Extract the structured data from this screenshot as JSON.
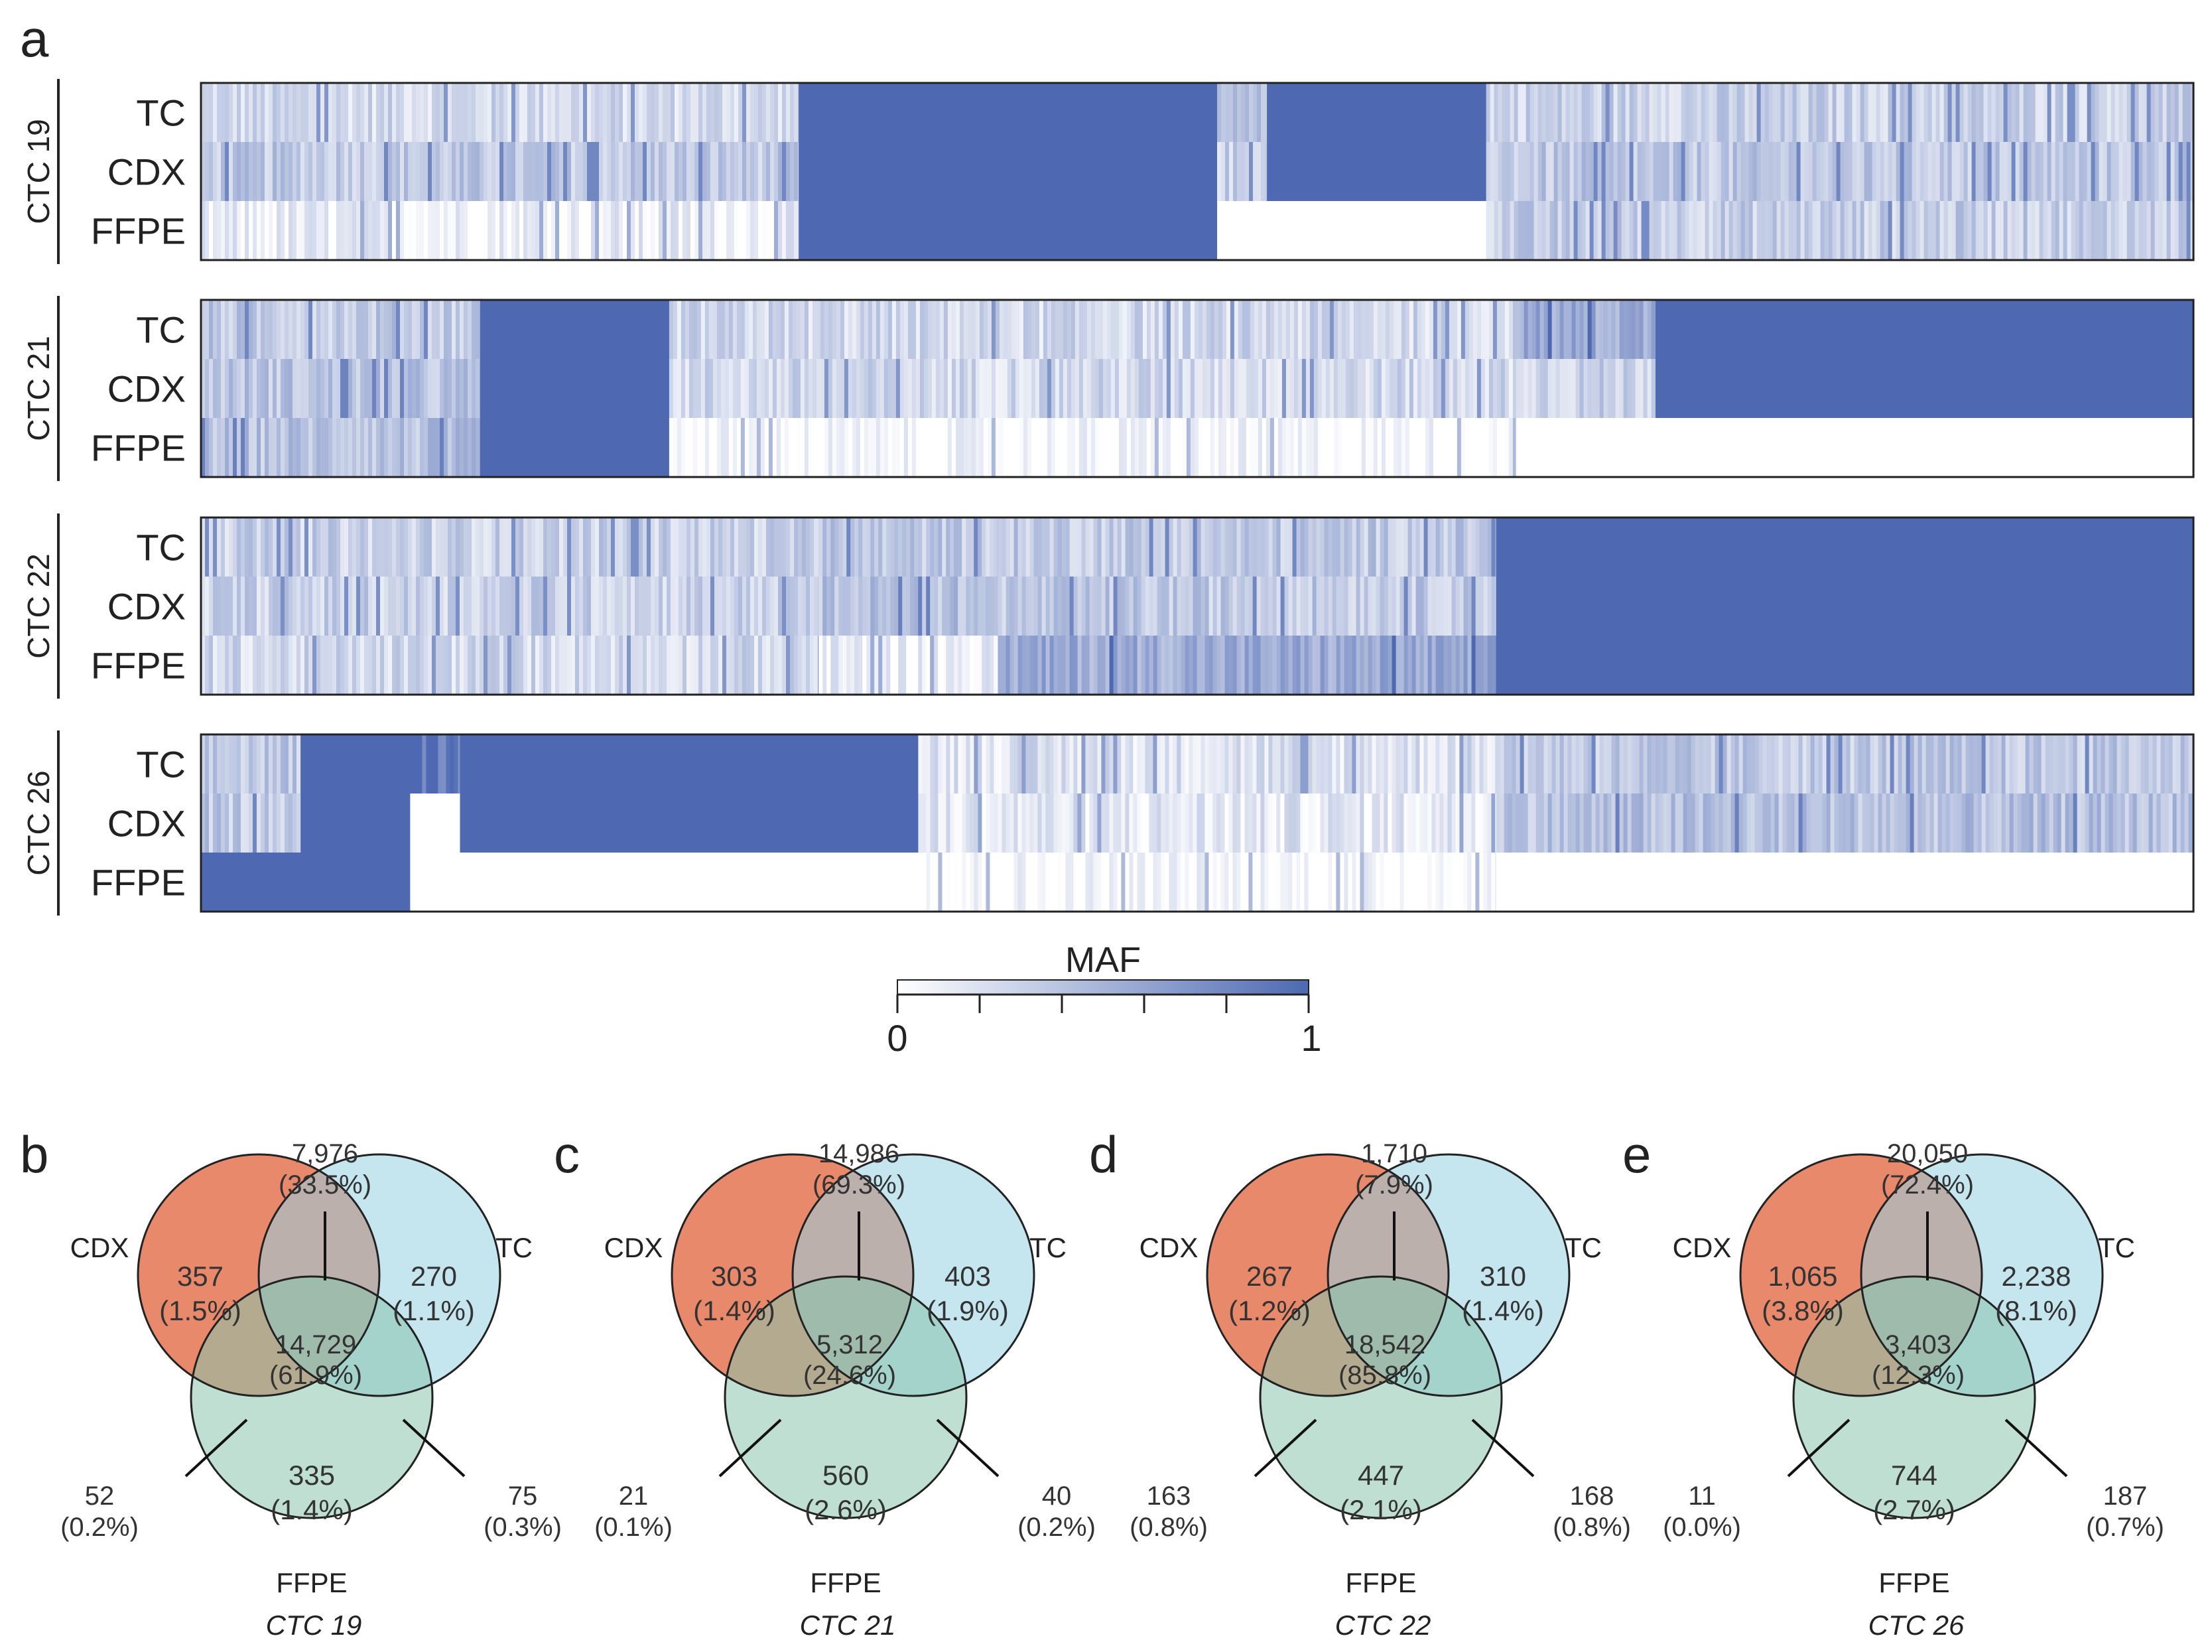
{
  "colors": {
    "max": "#4e69b2",
    "min": "#ffffff",
    "cdx": "#e9896c",
    "tc": "#95d0e2",
    "ffpe": "#89c4ad",
    "tri": "#a89f99"
  },
  "chart_data": [
    {
      "type": "heatmap",
      "panel": "a",
      "colorbar": {
        "title": "MAF",
        "min_label": "0",
        "max_label": "1",
        "range": [
          0,
          1
        ]
      },
      "groups": [
        {
          "name": "CTC 19",
          "rows": [
            "TC",
            "CDX",
            "FFPE"
          ],
          "blocks": [
            {
              "from": 0.0,
              "to": 0.3,
              "tc": 0.25,
              "cdx": 0.35,
              "ffpe": 0.1
            },
            {
              "from": 0.3,
              "to": 0.51,
              "tc": 1.0,
              "cdx": 1.0,
              "ffpe": 1.0
            },
            {
              "from": 0.51,
              "to": 0.535,
              "tc": 0.35,
              "cdx": 0.3,
              "ffpe": 0.0
            },
            {
              "from": 0.535,
              "to": 0.645,
              "tc": 1.0,
              "cdx": 1.0,
              "ffpe": 0.0
            },
            {
              "from": 0.645,
              "to": 1.0,
              "tc": 0.3,
              "cdx": 0.35,
              "ffpe": 0.32
            }
          ]
        },
        {
          "name": "CTC 21",
          "rows": [
            "TC",
            "CDX",
            "FFPE"
          ],
          "blocks": [
            {
              "from": 0.0,
              "to": 0.14,
              "tc": 0.35,
              "cdx": 0.38,
              "ffpe": 0.4
            },
            {
              "from": 0.14,
              "to": 0.235,
              "tc": 1.0,
              "cdx": 1.0,
              "ffpe": 1.0
            },
            {
              "from": 0.235,
              "to": 0.66,
              "tc": 0.25,
              "cdx": 0.25,
              "ffpe": 0.02
            },
            {
              "from": 0.66,
              "to": 0.73,
              "tc": 0.55,
              "cdx": 0.3,
              "ffpe": 0.0
            },
            {
              "from": 0.73,
              "to": 1.0,
              "tc": 1.0,
              "cdx": 1.0,
              "ffpe": 0.0
            }
          ]
        },
        {
          "name": "CTC 22",
          "rows": [
            "TC",
            "CDX",
            "FFPE"
          ],
          "blocks": [
            {
              "from": 0.0,
              "to": 0.31,
              "tc": 0.3,
              "cdx": 0.3,
              "ffpe": 0.25
            },
            {
              "from": 0.31,
              "to": 0.4,
              "tc": 0.35,
              "cdx": 0.4,
              "ffpe": 0.1
            },
            {
              "from": 0.4,
              "to": 0.65,
              "tc": 0.35,
              "cdx": 0.35,
              "ffpe": 0.55
            },
            {
              "from": 0.65,
              "to": 1.0,
              "tc": 1.0,
              "cdx": 1.0,
              "ffpe": 1.0
            }
          ]
        },
        {
          "name": "CTC 26",
          "rows": [
            "TC",
            "CDX",
            "FFPE"
          ],
          "blocks": [
            {
              "from": 0.0,
              "to": 0.05,
              "tc": 0.35,
              "cdx": 0.35,
              "ffpe": 1.0
            },
            {
              "from": 0.05,
              "to": 0.105,
              "tc": 1.0,
              "cdx": 1.0,
              "ffpe": 1.0
            },
            {
              "from": 0.105,
              "to": 0.13,
              "tc": 0.9,
              "cdx": 0.0,
              "ffpe": 0.0
            },
            {
              "from": 0.13,
              "to": 0.36,
              "tc": 1.0,
              "cdx": 1.0,
              "ffpe": 0.0
            },
            {
              "from": 0.36,
              "to": 0.65,
              "tc": 0.2,
              "cdx": 0.15,
              "ffpe": 0.02
            },
            {
              "from": 0.65,
              "to": 1.0,
              "tc": 0.35,
              "cdx": 0.4,
              "ffpe": 0.0
            }
          ]
        }
      ]
    },
    {
      "type": "venn",
      "panels": [
        {
          "letter": "b",
          "caption": "CTC 19",
          "sets": [
            "CDX",
            "TC",
            "FFPE"
          ],
          "regions": {
            "cdx_only": [
              "357",
              "(1.5%)"
            ],
            "tc_only": [
              "270",
              "(1.1%)"
            ],
            "ffpe_only": [
              "335",
              "(1.4%)"
            ],
            "cdx_tc": [
              "7,976",
              "(33.5%)"
            ],
            "cdx_ffpe": [
              "52",
              "(0.2%)"
            ],
            "tc_ffpe": [
              "75",
              "(0.3%)"
            ],
            "all": [
              "14,729",
              "(61.9%)"
            ]
          }
        },
        {
          "letter": "c",
          "caption": "CTC 21",
          "sets": [
            "CDX",
            "TC",
            "FFPE"
          ],
          "regions": {
            "cdx_only": [
              "303",
              "(1.4%)"
            ],
            "tc_only": [
              "403",
              "(1.9%)"
            ],
            "ffpe_only": [
              "560",
              "(2.6%)"
            ],
            "cdx_tc": [
              "14,986",
              "(69.3%)"
            ],
            "cdx_ffpe": [
              "21",
              "(0.1%)"
            ],
            "tc_ffpe": [
              "40",
              "(0.2%)"
            ],
            "all": [
              "5,312",
              "(24.6%)"
            ]
          }
        },
        {
          "letter": "d",
          "caption": "CTC 22",
          "sets": [
            "CDX",
            "TC",
            "FFPE"
          ],
          "regions": {
            "cdx_only": [
              "267",
              "(1.2%)"
            ],
            "tc_only": [
              "310",
              "(1.4%)"
            ],
            "ffpe_only": [
              "447",
              "(2.1%)"
            ],
            "cdx_tc": [
              "1,710",
              "(7.9%)"
            ],
            "cdx_ffpe": [
              "163",
              "(0.8%)"
            ],
            "tc_ffpe": [
              "168",
              "(0.8%)"
            ],
            "all": [
              "18,542",
              "(85.8%)"
            ]
          }
        },
        {
          "letter": "e",
          "caption": "CTC 26",
          "sets": [
            "CDX",
            "TC",
            "FFPE"
          ],
          "regions": {
            "cdx_only": [
              "1,065",
              "(3.8%)"
            ],
            "tc_only": [
              "2,238",
              "(8.1%)"
            ],
            "ffpe_only": [
              "744",
              "(2.7%)"
            ],
            "cdx_tc": [
              "20,050",
              "(72.4%)"
            ],
            "cdx_ffpe": [
              "11",
              "(0.0%)"
            ],
            "tc_ffpe": [
              "187",
              "(0.7%)"
            ],
            "all": [
              "3,403",
              "(12.3%)"
            ]
          }
        }
      ]
    }
  ],
  "panel_a_letter": "a"
}
